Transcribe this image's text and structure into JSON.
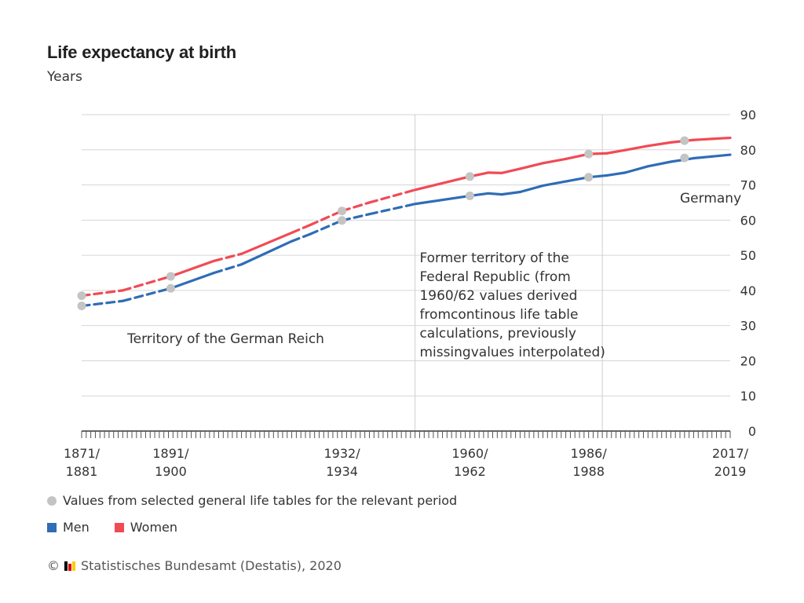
{
  "header": {
    "title": "Life expectancy at birth",
    "subtitle": "Years"
  },
  "legend": {
    "dot_label": "Values from selected general life tables for the relevant period",
    "men_label": "Men",
    "women_label": "Women"
  },
  "source": {
    "copyright": "©",
    "text": "Statistisches Bundesamt (Destatis), 2020"
  },
  "colors": {
    "men": "#2f6db5",
    "women": "#f04b55",
    "marker": "#c4c4c4",
    "grid": "#d6d6d6",
    "axis": "#333333"
  },
  "chart_data": {
    "type": "line",
    "title": "Life expectancy at birth",
    "ylabel": "Years",
    "ylim": [
      0,
      90
    ],
    "yticks": [
      0,
      10,
      20,
      30,
      40,
      50,
      60,
      70,
      80,
      90
    ],
    "y_axis_position": "right",
    "grid": true,
    "x_tick_labels": [
      {
        "x": 1876,
        "line1": "1871/",
        "line2": "1881"
      },
      {
        "x": 1895.5,
        "line1": "1891/",
        "line2": "1900"
      },
      {
        "x": 1933,
        "line1": "1932/",
        "line2": "1934"
      },
      {
        "x": 1961,
        "line1": "1960/",
        "line2": "1962"
      },
      {
        "x": 1987,
        "line1": "1986/",
        "line2": "1988"
      },
      {
        "x": 2018,
        "line1": "2017/",
        "line2": "2019"
      }
    ],
    "dividers": [
      1949,
      1990
    ],
    "region_labels": [
      {
        "text": "Territory of the German Reich",
        "x": 1886,
        "y": 25
      },
      {
        "text_lines": [
          "Former territory of the",
          "Federal Republic (from",
          "1960/62 values derived",
          "fromcontinous life table",
          "calculations, previously",
          "missingvalues interpolated)"
        ],
        "x": 1950,
        "y": 48
      },
      {
        "text": "Germany",
        "x": 2007,
        "y": 65
      }
    ],
    "series": [
      {
        "name": "Men",
        "color": "#2f6db5",
        "points": [
          {
            "x": 1876,
            "y": 35.6,
            "style": "dashed"
          },
          {
            "x": 1885,
            "y": 37.0,
            "style": "dashed"
          },
          {
            "x": 1895.5,
            "y": 40.6,
            "style": "dashed"
          },
          {
            "x": 1905,
            "y": 45.0,
            "style": "solid"
          },
          {
            "x": 1911,
            "y": 47.4,
            "style": "dashed"
          },
          {
            "x": 1922,
            "y": 54.0,
            "style": "solid"
          },
          {
            "x": 1926,
            "y": 56.0,
            "style": "dashed"
          },
          {
            "x": 1933,
            "y": 59.9,
            "style": "dashed"
          },
          {
            "x": 1939,
            "y": 61.7,
            "style": "dashed"
          },
          {
            "x": 1949,
            "y": 64.6,
            "style": "dashed"
          },
          {
            "x": 1961,
            "y": 66.9,
            "style": "solid"
          },
          {
            "x": 1965,
            "y": 67.6,
            "style": "solid"
          },
          {
            "x": 1968,
            "y": 67.3,
            "style": "solid"
          },
          {
            "x": 1972,
            "y": 68.0,
            "style": "solid"
          },
          {
            "x": 1977,
            "y": 69.8,
            "style": "solid"
          },
          {
            "x": 1982,
            "y": 71.0,
            "style": "solid"
          },
          {
            "x": 1987,
            "y": 72.2,
            "style": "solid"
          },
          {
            "x": 1991,
            "y": 72.7,
            "style": "solid"
          },
          {
            "x": 1995,
            "y": 73.5,
            "style": "solid"
          },
          {
            "x": 2000,
            "y": 75.3,
            "style": "solid"
          },
          {
            "x": 2005,
            "y": 76.6,
            "style": "solid"
          },
          {
            "x": 2010,
            "y": 77.6,
            "style": "solid"
          },
          {
            "x": 2014,
            "y": 78.1,
            "style": "solid"
          },
          {
            "x": 2018,
            "y": 78.6,
            "style": "solid"
          }
        ],
        "life_table_points": [
          {
            "x": 1876,
            "y": 35.6
          },
          {
            "x": 1895.5,
            "y": 40.6
          },
          {
            "x": 1933,
            "y": 59.9
          },
          {
            "x": 1961,
            "y": 66.9
          },
          {
            "x": 1987,
            "y": 72.2
          },
          {
            "x": 2008,
            "y": 77.7
          }
        ]
      },
      {
        "name": "Women",
        "color": "#f04b55",
        "points": [
          {
            "x": 1876,
            "y": 38.5,
            "style": "dashed"
          },
          {
            "x": 1885,
            "y": 40.0,
            "style": "dashed"
          },
          {
            "x": 1895.5,
            "y": 44.0,
            "style": "dashed"
          },
          {
            "x": 1905,
            "y": 48.4,
            "style": "solid"
          },
          {
            "x": 1911,
            "y": 50.4,
            "style": "dashed"
          },
          {
            "x": 1922,
            "y": 56.4,
            "style": "solid"
          },
          {
            "x": 1926,
            "y": 58.6,
            "style": "dashed"
          },
          {
            "x": 1933,
            "y": 62.6,
            "style": "dashed"
          },
          {
            "x": 1939,
            "y": 65.0,
            "style": "dashed"
          },
          {
            "x": 1949,
            "y": 68.6,
            "style": "dashed"
          },
          {
            "x": 1961,
            "y": 72.4,
            "style": "solid"
          },
          {
            "x": 1965,
            "y": 73.5,
            "style": "solid"
          },
          {
            "x": 1968,
            "y": 73.4,
            "style": "solid"
          },
          {
            "x": 1972,
            "y": 74.6,
            "style": "solid"
          },
          {
            "x": 1977,
            "y": 76.2,
            "style": "solid"
          },
          {
            "x": 1982,
            "y": 77.4,
            "style": "solid"
          },
          {
            "x": 1987,
            "y": 78.8,
            "style": "solid"
          },
          {
            "x": 1991,
            "y": 79.0,
            "style": "solid"
          },
          {
            "x": 1995,
            "y": 79.9,
            "style": "solid"
          },
          {
            "x": 2000,
            "y": 81.1,
            "style": "solid"
          },
          {
            "x": 2005,
            "y": 82.1,
            "style": "solid"
          },
          {
            "x": 2010,
            "y": 82.8,
            "style": "solid"
          },
          {
            "x": 2014,
            "y": 83.1,
            "style": "solid"
          },
          {
            "x": 2018,
            "y": 83.4,
            "style": "solid"
          }
        ],
        "life_table_points": [
          {
            "x": 1876,
            "y": 38.5
          },
          {
            "x": 1895.5,
            "y": 44.0
          },
          {
            "x": 1933,
            "y": 62.6
          },
          {
            "x": 1961,
            "y": 72.4
          },
          {
            "x": 1987,
            "y": 78.8
          },
          {
            "x": 2008,
            "y": 82.6
          }
        ]
      }
    ]
  }
}
